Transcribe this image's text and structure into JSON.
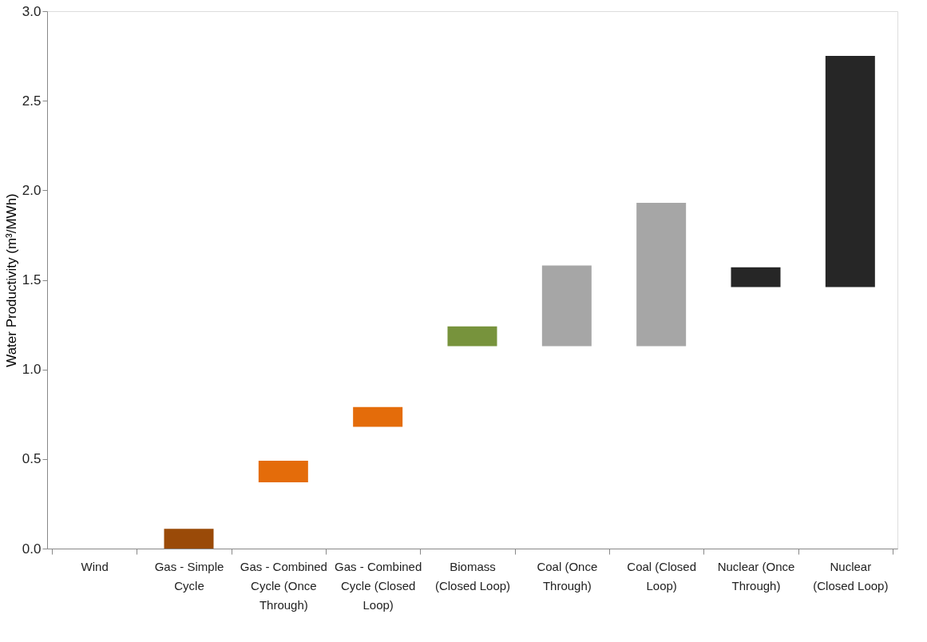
{
  "chart_data": {
    "type": "bar",
    "ylabel": "Water Productivity (m³/MWh)",
    "categories": [
      "Wind",
      "Gas - Simple Cycle",
      "Gas - Combined Cycle (Once Through)",
      "Gas - Combined Cycle (Closed Loop)",
      "Biomass (Closed Loop)",
      "Coal (Once Through)",
      "Coal (Closed Loop)",
      "Nuclear (Once Through)",
      "Nuclear (Closed Loop)"
    ],
    "base": [
      null,
      0,
      0.37,
      0.68,
      1.13,
      1.13,
      1.13,
      1.46,
      1.46
    ],
    "values": [
      null,
      0.11,
      0.12,
      0.11,
      0.11,
      0.45,
      0.8,
      0.11,
      1.29
    ],
    "colors": [
      "#999999",
      "#9a4a08",
      "#e46c0a",
      "#e46c0a",
      "#77933c",
      "#a6a6a6",
      "#a6a6a6",
      "#262626",
      "#262626"
    ],
    "ylim": [
      0,
      3.0
    ],
    "yticks": [
      {
        "value": 0,
        "label": "0.0"
      },
      0.5,
      {
        "value": 1,
        "label": "1.0"
      },
      1.5,
      {
        "value": 2,
        "label": "2.0"
      },
      2.5,
      {
        "value": 3,
        "label": "3.0"
      }
    ],
    "grid": false
  }
}
